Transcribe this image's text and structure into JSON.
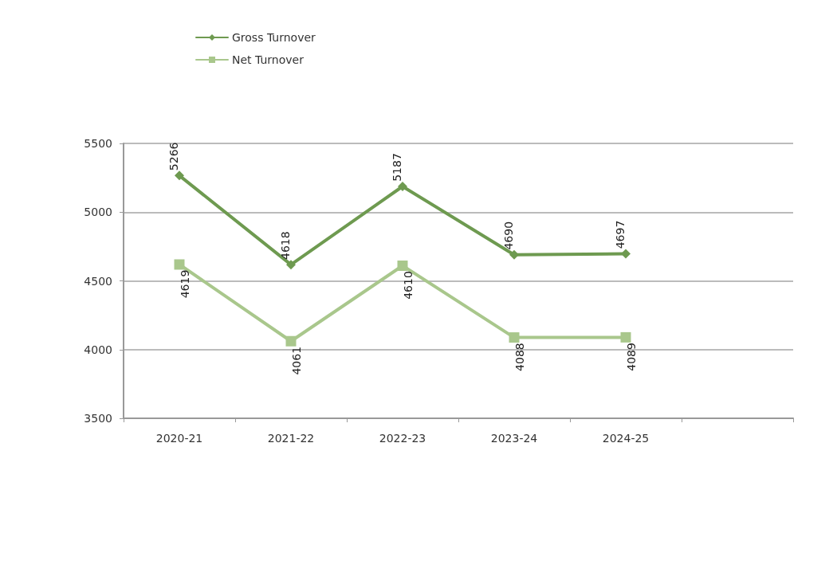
{
  "chart_data": {
    "type": "line",
    "categories": [
      "2020-21",
      "2021-22",
      "2022-23",
      "2023-24",
      "2024-25",
      null
    ],
    "series": [
      {
        "name": "Gross Turnover",
        "color": "#6e9a50",
        "marker": "diamond",
        "values": [
          5266,
          4618,
          5187,
          4690,
          4697,
          null
        ]
      },
      {
        "name": "Net Turnover",
        "color": "#a9c78c",
        "marker": "square",
        "values": [
          4619,
          4061,
          4610,
          4088,
          4089,
          null
        ]
      }
    ],
    "ylim": [
      3500,
      5500
    ],
    "yticks": [
      3500,
      4000,
      4500,
      5000,
      5500
    ],
    "grid": "y",
    "legend": "top left",
    "data_labels": true,
    "line_style": "solid"
  }
}
